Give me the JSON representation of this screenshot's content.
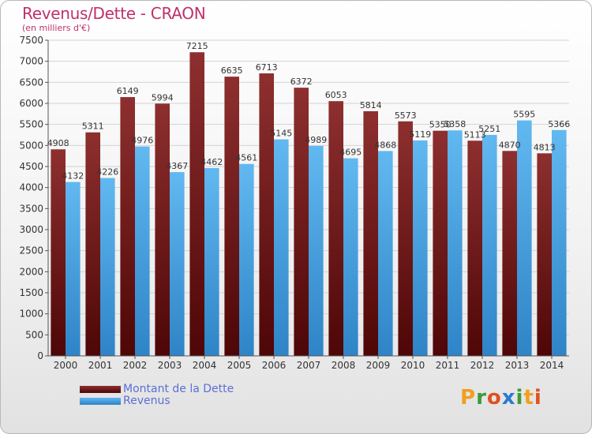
{
  "chart_data": {
    "type": "bar",
    "title": "Revenus/Dette - CRAON",
    "subtitle": "(en milliers d'€)",
    "categories": [
      "2000",
      "2001",
      "2002",
      "2003",
      "2004",
      "2005",
      "2006",
      "2007",
      "2008",
      "2009",
      "2010",
      "2011",
      "2012",
      "2013",
      "2014"
    ],
    "series": [
      {
        "name": "Montant de la Dette",
        "color": "#7a1a1a",
        "values": [
          4908,
          5311,
          6149,
          5994,
          7215,
          6635,
          6713,
          6372,
          6053,
          5814,
          5573,
          5350,
          5113,
          4870,
          4813
        ]
      },
      {
        "name": "Revenus",
        "color": "#4aa6e6",
        "values": [
          4132,
          4226,
          4976,
          4367,
          4462,
          4561,
          5145,
          4989,
          4695,
          4868,
          5119,
          5358,
          5251,
          5595,
          5366
        ]
      }
    ],
    "data_labels": [
      [
        "4908",
        "5311",
        "6149",
        "5994",
        "7215",
        "6635",
        "6713",
        "6372",
        "6053",
        "5814",
        "5573",
        "5350",
        "5113",
        "4870",
        "4813"
      ],
      [
        "4132",
        "4226",
        "4976",
        "4367",
        "4462",
        "4561",
        "5145",
        "4989",
        "4695",
        "4868",
        "5119",
        "5358",
        "5251",
        "5595",
        "5366"
      ]
    ],
    "ylim": [
      0,
      7500
    ],
    "yticks": [
      "0",
      "500",
      "1000",
      "1500",
      "2000",
      "2500",
      "3000",
      "3500",
      "4000",
      "4500",
      "5000",
      "5500",
      "6000",
      "6500",
      "7000",
      "7500"
    ],
    "grid": true,
    "legend_position": "bottom-left"
  },
  "legend": {
    "items": [
      {
        "label": "Montant de la Dette",
        "color": "#7a1a1a"
      },
      {
        "label": "Revenus",
        "color": "#4aa6e6"
      }
    ]
  },
  "brand": {
    "letters": [
      "P",
      "r",
      "o",
      "x",
      "i",
      "t",
      "i"
    ],
    "colors": [
      "#f0a020",
      "#3a9a3a",
      "#e05020",
      "#2a7ad0",
      "#3a9a3a",
      "#f0a020",
      "#e05020"
    ]
  }
}
